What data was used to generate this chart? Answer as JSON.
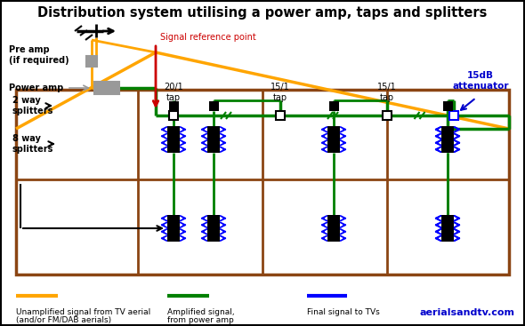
{
  "title": "Distribution system utilising a power amp, taps and splitters",
  "bg_color": "#ffffff",
  "orange_color": "#FFA500",
  "green_color": "#008000",
  "blue_color": "#0000FF",
  "brown_color": "#8B4513",
  "black_color": "#000000",
  "red_color": "#CC0000",
  "gray_color": "#999999",
  "dark_blue_color": "#0000CC",
  "legend_orange_label1": "Unamplified signal from TV aerial",
  "legend_orange_label2": "(and/or FM/DAB aerials)",
  "legend_green_label1": "Amplified signal,",
  "legend_green_label2": "from power amp",
  "legend_blue_label": "Final signal to TVs",
  "watermark": "aerialsandtv.com",
  "signal_ref_label": "Signal reference point",
  "attenuator_label1": "15dB",
  "attenuator_label2": "attenuator",
  "pre_amp_label": "Pre amp\n(if required)",
  "power_amp_label": "Power amp",
  "two_way_label": "2 way\nsplitters",
  "eight_way_label": "8 way\nsplitters",
  "tap_labels": [
    "20/1\ntap",
    "15/1\ntap",
    "15/1\ntap"
  ]
}
